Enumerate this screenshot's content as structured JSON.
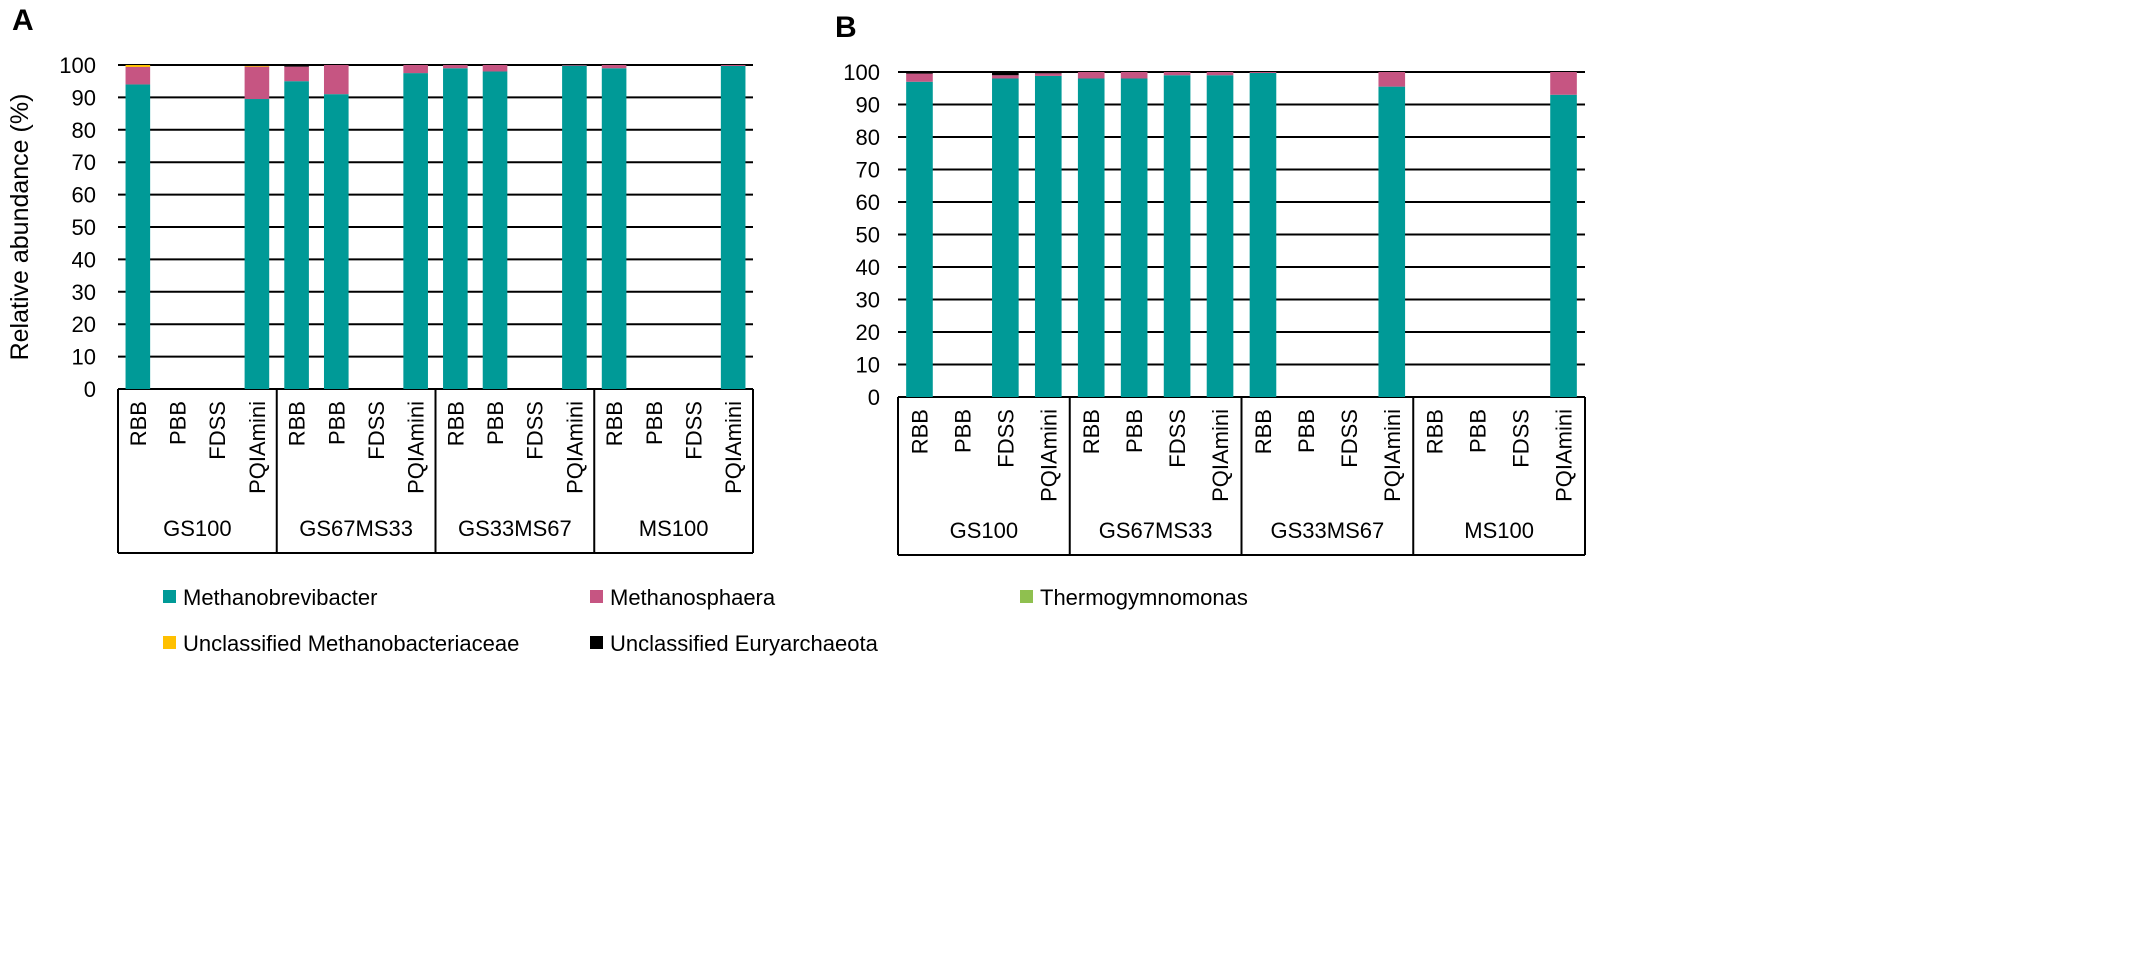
{
  "chart_data": [
    {
      "panel": "A",
      "type": "bar",
      "stacked": true,
      "ylabel": "Relative abundance (%)",
      "ylim": [
        0,
        100
      ],
      "yticks": [
        0,
        10,
        20,
        30,
        40,
        50,
        60,
        70,
        80,
        90,
        100
      ],
      "groups": [
        "GS100",
        "GS67MS33",
        "GS33MS67",
        "MS100"
      ],
      "categories": [
        "RBB",
        "PBB",
        "FDSS",
        "PQIAmini"
      ],
      "series": [
        {
          "name": "Methanobrevibacter",
          "values": [
            [
              94,
              0,
              0,
              89.5
            ],
            [
              95,
              91,
              0,
              97.5
            ],
            [
              99,
              98,
              0,
              99.8
            ],
            [
              99,
              0,
              0,
              99.7
            ]
          ]
        },
        {
          "name": "Methanosphaera",
          "values": [
            [
              5.4,
              0,
              0,
              10
            ],
            [
              4.5,
              9,
              0,
              2.5
            ],
            [
              1,
              2,
              0,
              0.2
            ],
            [
              1,
              0,
              0,
              0.3
            ]
          ]
        },
        {
          "name": "Thermogymnomonas",
          "values": [
            [
              0,
              0,
              0,
              0
            ],
            [
              0,
              0,
              0,
              0
            ],
            [
              0,
              0,
              0,
              0
            ],
            [
              0,
              0,
              0,
              0
            ]
          ]
        },
        {
          "name": "Unclassified Methanobacteriaceae",
          "values": [
            [
              0.6,
              0,
              0,
              0.2
            ],
            [
              0,
              0,
              0,
              0
            ],
            [
              0,
              0,
              0,
              0
            ],
            [
              0,
              0,
              0,
              0
            ]
          ]
        },
        {
          "name": "Unclassified Euryarchaeota",
          "values": [
            [
              0,
              0,
              0,
              0.3
            ],
            [
              0.5,
              0,
              0,
              0
            ],
            [
              0,
              0,
              0,
              0
            ],
            [
              0,
              0,
              0,
              0
            ]
          ]
        }
      ]
    },
    {
      "panel": "B",
      "type": "bar",
      "stacked": true,
      "ylabel": "",
      "ylim": [
        0,
        100
      ],
      "yticks": [
        0,
        10,
        20,
        30,
        40,
        50,
        60,
        70,
        80,
        90,
        100
      ],
      "groups": [
        "GS100",
        "GS67MS33",
        "GS33MS67",
        "MS100"
      ],
      "categories": [
        "RBB",
        "PBB",
        "FDSS",
        "PQIAmini"
      ],
      "series": [
        {
          "name": "Methanobrevibacter",
          "values": [
            [
              97,
              0,
              98,
              98.8
            ],
            [
              98,
              98,
              99,
              99
            ],
            [
              99.7,
              0,
              0,
              95.5
            ],
            [
              0,
              0,
              0,
              93
            ]
          ]
        },
        {
          "name": "Methanosphaera",
          "values": [
            [
              2.5,
              0,
              1,
              0.8
            ],
            [
              2,
              2,
              1,
              1
            ],
            [
              0.3,
              0,
              0,
              4.5
            ],
            [
              0,
              0,
              0,
              7
            ]
          ]
        },
        {
          "name": "Thermogymnomonas",
          "values": [
            [
              0,
              0,
              0,
              0
            ],
            [
              0,
              0,
              0,
              0
            ],
            [
              0,
              0,
              0,
              0
            ],
            [
              0,
              0,
              0,
              0
            ]
          ]
        },
        {
          "name": "Unclassified Methanobacteriaceae",
          "values": [
            [
              0,
              0,
              0,
              0
            ],
            [
              0,
              0,
              0,
              0
            ],
            [
              0,
              0,
              0,
              0
            ],
            [
              0,
              0,
              0,
              0
            ]
          ]
        },
        {
          "name": "Unclassified Euryarchaeota",
          "values": [
            [
              0.5,
              0,
              1,
              0.4
            ],
            [
              0,
              0,
              0,
              0
            ],
            [
              0,
              0,
              0,
              0
            ],
            [
              0,
              0,
              0,
              0
            ]
          ]
        }
      ]
    }
  ],
  "legend": [
    "Methanobrevibacter",
    "Methanosphaera",
    "Thermogymnomonas",
    "Unclassified Methanobacteriaceae",
    "Unclassified Euryarchaeota"
  ],
  "colors": [
    "#009a97",
    "#c65582",
    "#8fc04f",
    "#ffc000",
    "#000000"
  ]
}
